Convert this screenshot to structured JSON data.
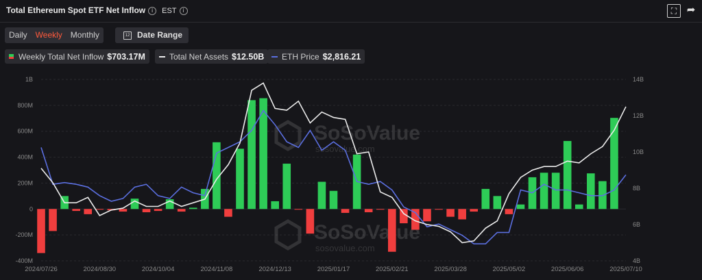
{
  "header": {
    "title": "Total Ethereum Spot ETF Net Inflow",
    "timezone": "EST"
  },
  "period_tabs": [
    {
      "label": "Daily",
      "active": false
    },
    {
      "label": "Weekly",
      "active": true
    },
    {
      "label": "Monthly",
      "active": false
    }
  ],
  "date_range_label": "Date Range",
  "legend": [
    {
      "name": "Weekly Total Net Inflow",
      "value": "$703.17M"
    },
    {
      "name": "Total Net Assets",
      "value": "$12.50B"
    },
    {
      "name": "ETH Price",
      "value": "$2,816.21"
    }
  ],
  "colors": {
    "positive_bar": "#2ecc57",
    "negative_bar": "#f03e3e",
    "net_assets_line": "#ececec",
    "eth_price_line": "#5b6fe0",
    "background": "#16161a"
  },
  "icons": [
    "info-icon",
    "fullscreen-icon",
    "share-icon",
    "calendar-icon"
  ],
  "watermark": {
    "brand": "SoSoValue",
    "site": "sosovalue.com"
  },
  "chart_data": {
    "type": "bar",
    "x_tick_labels": [
      "2024/07/26",
      "2024/08/30",
      "2024/10/04",
      "2024/11/08",
      "2024/12/13",
      "2025/01/17",
      "2025/02/21",
      "2025/03/28",
      "2025/05/02",
      "2025/06/06",
      "2025/07/10"
    ],
    "y_left": {
      "ticks": [
        "1B",
        "800M",
        "600M",
        "400M",
        "200M",
        "0",
        "-200M",
        "-400M"
      ],
      "range_millions": [
        -400,
        1000
      ]
    },
    "y_right": {
      "ticks": [
        "14B",
        "12B",
        "10B",
        "8B",
        "6B",
        "4B"
      ],
      "range_billions": [
        4,
        14
      ]
    },
    "grid": "horizontal",
    "categories": [
      "2024/07/26",
      "2024/08/02",
      "2024/08/09",
      "2024/08/16",
      "2024/08/23",
      "2024/08/30",
      "2024/09/06",
      "2024/09/13",
      "2024/09/20",
      "2024/09/27",
      "2024/10/04",
      "2024/10/11",
      "2024/10/18",
      "2024/10/25",
      "2024/11/01",
      "2024/11/08",
      "2024/11/15",
      "2024/11/22",
      "2024/11/29",
      "2024/12/06",
      "2024/12/13",
      "2024/12/20",
      "2024/12/27",
      "2025/01/03",
      "2025/01/10",
      "2025/01/17",
      "2025/01/24",
      "2025/01/31",
      "2025/02/07",
      "2025/02/14",
      "2025/02/21",
      "2025/02/28",
      "2025/03/07",
      "2025/03/14",
      "2025/03/21",
      "2025/03/28",
      "2025/04/04",
      "2025/04/11",
      "2025/04/18",
      "2025/04/25",
      "2025/05/02",
      "2025/05/09",
      "2025/05/16",
      "2025/05/23",
      "2025/05/30",
      "2025/06/06",
      "2025/06/13",
      "2025/06/20",
      "2025/06/27",
      "2025/07/04",
      "2025/07/10"
    ],
    "series": [
      {
        "name": "Weekly Total Net Inflow",
        "axis": "left",
        "unit": "millions USD",
        "values": [
          -340,
          -170,
          100,
          -15,
          -40,
          -5,
          -10,
          -20,
          80,
          -25,
          -15,
          75,
          -20,
          10,
          155,
          515,
          -60,
          465,
          840,
          855,
          60,
          350,
          -5,
          -190,
          210,
          140,
          -30,
          420,
          -25,
          -5,
          -330,
          -110,
          -160,
          -95,
          -5,
          -60,
          -80,
          -20,
          155,
          100,
          -40,
          35,
          245,
          280,
          280,
          525,
          35,
          275,
          215,
          703.17,
          0
        ]
      },
      {
        "name": "Total Net Assets",
        "axis": "right",
        "unit": "billions USD",
        "values": [
          9.1,
          8.3,
          7.2,
          7.2,
          7.5,
          6.5,
          6.8,
          6.9,
          7.3,
          7.0,
          7.0,
          7.3,
          7.0,
          7.2,
          7.4,
          8.5,
          9.3,
          10.5,
          13.4,
          13.8,
          12.4,
          12.3,
          12.8,
          11.6,
          12.2,
          11.9,
          11.8,
          9.9,
          10.0,
          7.8,
          7.5,
          6.6,
          6.2,
          6.0,
          5.9,
          5.6,
          5.0,
          5.1,
          5.8,
          6.2,
          7.7,
          8.6,
          9.0,
          9.2,
          9.2,
          9.5,
          9.4,
          9.9,
          10.3,
          11.2,
          12.5
        ]
      },
      {
        "name": "ETH Price",
        "axis": "left",
        "unit": "USD",
        "values": [
          3300,
          2650,
          2680,
          2650,
          2600,
          2450,
          2350,
          2400,
          2600,
          2650,
          2450,
          2400,
          2600,
          2500,
          2450,
          3200,
          3300,
          3400,
          3600,
          3950,
          3700,
          3400,
          3300,
          3600,
          3250,
          3400,
          3250,
          2700,
          2650,
          2700,
          2550,
          2250,
          2150,
          1900,
          1950,
          1850,
          1750,
          1600,
          1600,
          1800,
          1800,
          2550,
          2500,
          2650,
          2550,
          2550,
          2500,
          2450,
          2450,
          2550,
          2816.21
        ]
      }
    ]
  }
}
